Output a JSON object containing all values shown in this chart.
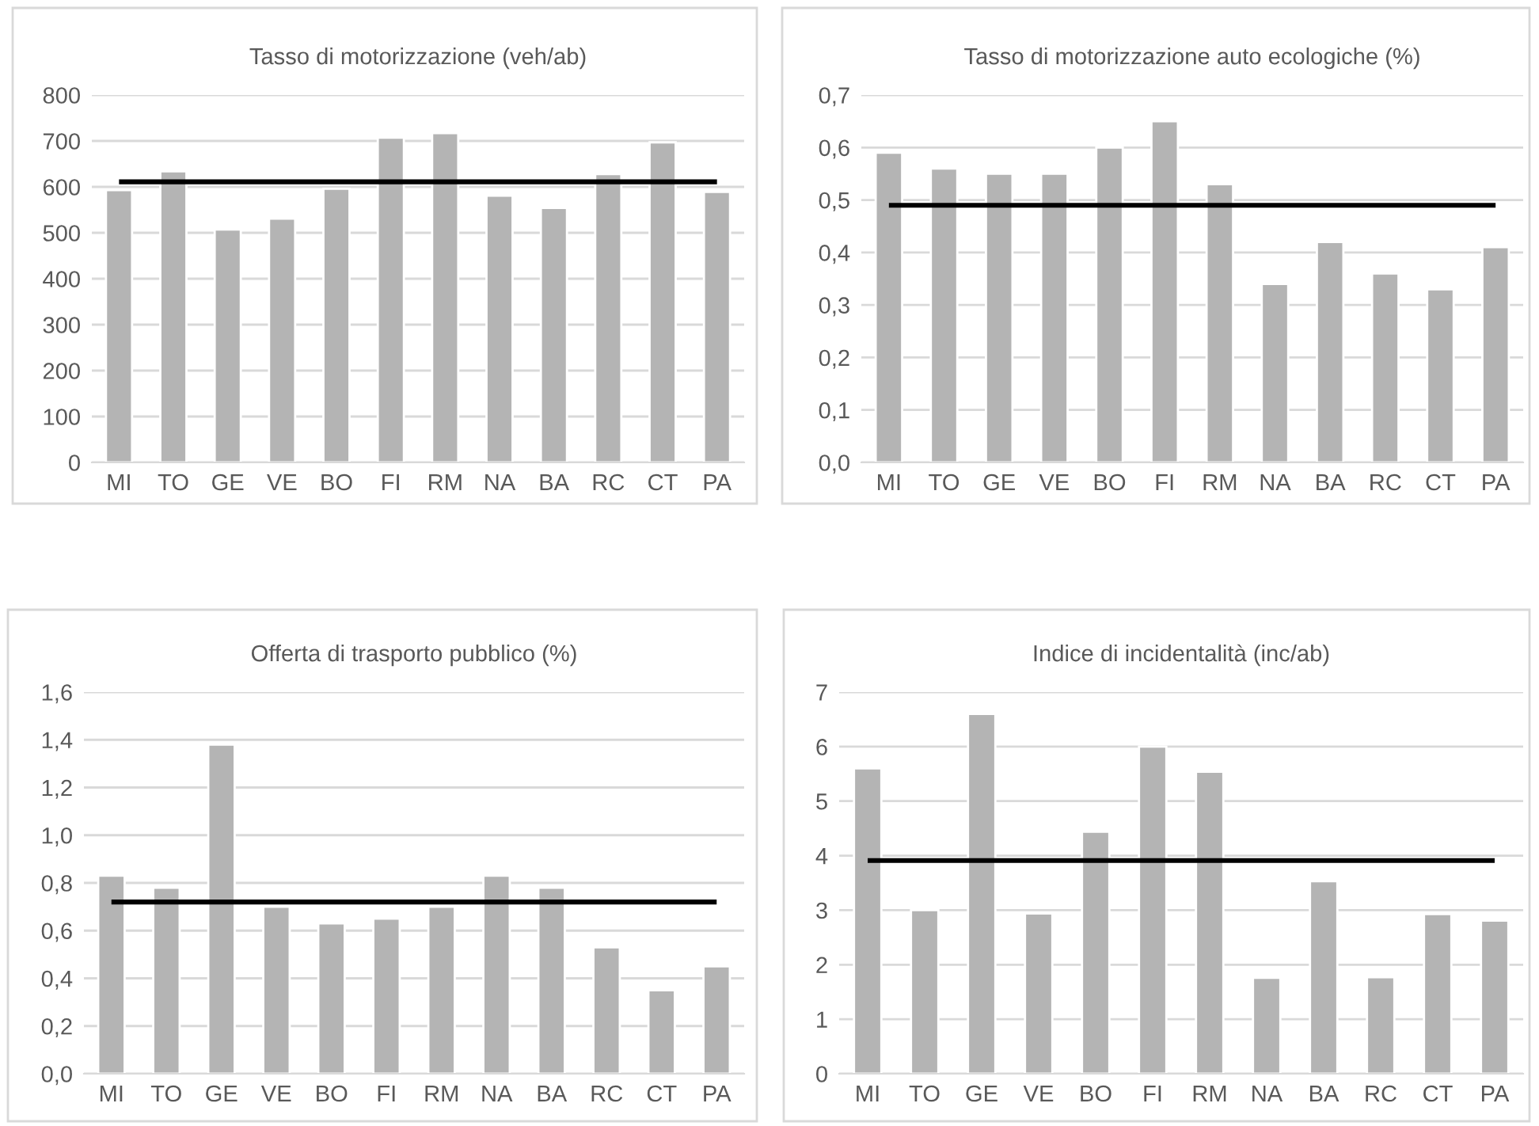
{
  "chart_data": [
    {
      "type": "bar",
      "title": "Tasso di motorizzazione (veh/ab)",
      "categories": [
        "MI",
        "TO",
        "GE",
        "VE",
        "BO",
        "FI",
        "RM",
        "NA",
        "BA",
        "RC",
        "CT",
        "PA"
      ],
      "values": [
        593,
        634,
        507,
        531,
        596,
        707,
        717,
        581,
        554,
        628,
        697,
        589
      ],
      "color": "#b4b4b4",
      "ylim": [
        0,
        800
      ],
      "yticks": [
        0,
        100,
        200,
        300,
        400,
        500,
        600,
        700,
        800
      ],
      "grid": "y",
      "ref_lines": [
        {
          "axis": "y",
          "value": 611,
          "color": "#000000"
        }
      ]
    },
    {
      "type": "bar",
      "title": "Tasso di motorizzazione auto ecologiche (%)",
      "categories": [
        "MI",
        "TO",
        "GE",
        "VE",
        "BO",
        "FI",
        "RM",
        "NA",
        "BA",
        "RC",
        "CT",
        "PA"
      ],
      "values": [
        0.59,
        0.56,
        0.55,
        0.55,
        0.6,
        0.65,
        0.53,
        0.34,
        0.42,
        0.36,
        0.33,
        0.41
      ],
      "color": "#b4b4b4",
      "ylim": [
        0,
        0.7
      ],
      "yticks": [
        {
          "value": 0,
          "label": "0,0"
        },
        {
          "value": 0.1,
          "label": "0,1"
        },
        {
          "value": 0.2,
          "label": "0,2"
        },
        {
          "value": 0.3,
          "label": "0,3"
        },
        {
          "value": 0.4,
          "label": "0,4"
        },
        {
          "value": 0.5,
          "label": "0,5"
        },
        {
          "value": 0.6,
          "label": "0,6"
        },
        {
          "value": 0.7,
          "label": "0,7"
        }
      ],
      "grid": "y",
      "ref_lines": [
        {
          "axis": "y",
          "value": 0.49,
          "color": "#000000"
        }
      ]
    },
    {
      "type": "bar",
      "title": "Offerta di trasporto pubblico (%)",
      "categories": [
        "MI",
        "TO",
        "GE",
        "VE",
        "BO",
        "FI",
        "RM",
        "NA",
        "BA",
        "RC",
        "CT",
        "PA"
      ],
      "values": [
        0.83,
        0.78,
        1.38,
        0.7,
        0.63,
        0.65,
        0.7,
        0.83,
        0.78,
        0.53,
        0.35,
        0.45
      ],
      "color": "#b4b4b4",
      "ylim": [
        0,
        1.6
      ],
      "yticks": [
        {
          "value": 0,
          "label": "0,0"
        },
        {
          "value": 0.2,
          "label": "0,2"
        },
        {
          "value": 0.4,
          "label": "0,4"
        },
        {
          "value": 0.6,
          "label": "0,6"
        },
        {
          "value": 0.8,
          "label": "0,8"
        },
        {
          "value": 1.0,
          "label": "1,0"
        },
        {
          "value": 1.2,
          "label": "1,2"
        },
        {
          "value": 1.4,
          "label": "1,4"
        },
        {
          "value": 1.6,
          "label": "1,6"
        }
      ],
      "grid": "y",
      "ref_lines": [
        {
          "axis": "y",
          "value": 0.72,
          "color": "#000000"
        }
      ]
    },
    {
      "type": "bar",
      "title": "Indice di incidentalità (inc/ab)",
      "categories": [
        "MI",
        "TO",
        "GE",
        "VE",
        "BO",
        "FI",
        "RM",
        "NA",
        "BA",
        "RC",
        "CT",
        "PA"
      ],
      "values": [
        5.6,
        3.0,
        6.6,
        2.94,
        4.44,
        6.0,
        5.54,
        1.76,
        3.53,
        1.77,
        2.93,
        2.81
      ],
      "color": "#b4b4b4",
      "ylim": [
        0,
        7
      ],
      "yticks": [
        0,
        1,
        2,
        3,
        4,
        5,
        6,
        7
      ],
      "grid": "y",
      "ref_lines": [
        {
          "axis": "y",
          "value": 3.91,
          "color": "#000000"
        }
      ]
    }
  ]
}
